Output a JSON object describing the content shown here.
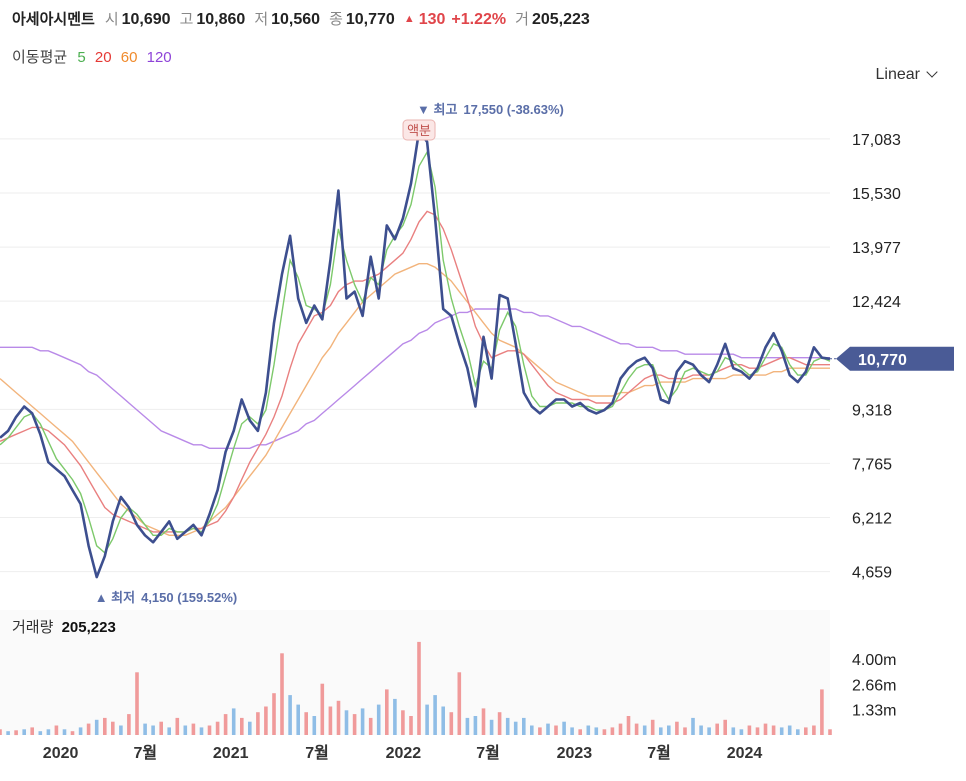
{
  "header": {
    "name": "아세아시멘트",
    "open_label": "시",
    "open": "10,690",
    "high_label": "고",
    "high": "10,860",
    "low_label": "저",
    "low": "10,560",
    "close_label": "종",
    "close": "10,770",
    "change": "130",
    "change_pct": "+1.22%",
    "volume_label": "거",
    "volume": "205,223"
  },
  "ma_legend": {
    "title": "이동평균",
    "periods": [
      {
        "label": "5",
        "color": "#4caf50"
      },
      {
        "label": "20",
        "color": "#e53935"
      },
      {
        "label": "60",
        "color": "#f08a2b"
      },
      {
        "label": "120",
        "color": "#8e44d8"
      }
    ]
  },
  "scale_selector": {
    "label": "Linear"
  },
  "volume_panel": {
    "title": "거래량",
    "value": "205,223"
  },
  "colors": {
    "price_line": "#3d4f8f",
    "ma5": "#7dc96b",
    "ma20": "#e98080",
    "ma60": "#f2b47c",
    "ma120": "#b98ae8",
    "current_tag": "#4a5b96",
    "volume_up": "#f09a9a",
    "volume_down": "#8fbde6"
  },
  "chart_data": {
    "type": "line",
    "y_ticks": [
      "17,083",
      "15,530",
      "13,977",
      "12,424",
      "9,318",
      "7,765",
      "6,212",
      "4,659"
    ],
    "y_tick_values": [
      17083,
      15530,
      13977,
      12424,
      9318,
      7765,
      6212,
      4659
    ],
    "ylim": [
      3700,
      18200
    ],
    "x_ticks": [
      "2020",
      "7월",
      "2021",
      "7월",
      "2022",
      "7월",
      "2023",
      "7월",
      "2024"
    ],
    "current_price_tag": "10,770",
    "high_annotation": {
      "label": "최고",
      "value": "17,550 (-38.63%)",
      "price": 17550
    },
    "low_annotation": {
      "label": "최저",
      "value": "4,150 (159.52%)",
      "price": 4150
    },
    "event_marker": "액분",
    "volume_ticks": [
      "4.00m",
      "2.66m",
      "1.33m"
    ],
    "volume_tick_values": [
      4000000,
      2660000,
      1330000
    ],
    "series": [
      {
        "name": "Price",
        "values": [
          8500,
          8700,
          9100,
          9400,
          9200,
          8600,
          7800,
          7600,
          7400,
          7000,
          6600,
          5400,
          4500,
          5100,
          6100,
          6800,
          6500,
          6000,
          5700,
          5500,
          5800,
          6100,
          5600,
          5800,
          6000,
          5700,
          6300,
          7000,
          8100,
          8700,
          9600,
          9000,
          8700,
          9800,
          11800,
          13200,
          14300,
          12500,
          11800,
          12300,
          11900,
          13600,
          15600,
          12500,
          12700,
          12000,
          13700,
          12500,
          14600,
          14200,
          14800,
          15800,
          17300,
          17000,
          14800,
          12200,
          12000,
          11200,
          10500,
          9400,
          11400,
          10200,
          12600,
          12500,
          11200,
          9800,
          9400,
          9200,
          9400,
          9600,
          9600,
          9400,
          9500,
          9300,
          9200,
          9300,
          9500,
          10200,
          10500,
          10700,
          10800,
          10500,
          9600,
          9500,
          10400,
          10700,
          10600,
          10300,
          10100,
          10600,
          11200,
          10500,
          10400,
          10200,
          10500,
          11100,
          11500,
          11000,
          10300,
          10100,
          10400,
          11100,
          10800,
          10770
        ]
      },
      {
        "name": "MA5",
        "values": [
          8300,
          8500,
          8800,
          9100,
          9200,
          8900,
          8400,
          7900,
          7600,
          7300,
          6900,
          6200,
          5400,
          5200,
          5600,
          6200,
          6500,
          6300,
          6000,
          5700,
          5700,
          5900,
          5800,
          5800,
          5900,
          5800,
          6100,
          6600,
          7400,
          8200,
          8900,
          9100,
          8900,
          9300,
          10600,
          12100,
          13600,
          13100,
          12300,
          12200,
          12000,
          12900,
          14500,
          13600,
          12900,
          12400,
          13100,
          12900,
          13900,
          14300,
          14600,
          15200,
          16300,
          16700,
          15700,
          13600,
          12500,
          11700,
          11000,
          10000,
          10700,
          10500,
          11600,
          12100,
          11700,
          10600,
          9700,
          9400,
          9400,
          9500,
          9500,
          9500,
          9400,
          9400,
          9300,
          9300,
          9400,
          9800,
          10200,
          10500,
          10600,
          10600,
          10000,
          9600,
          9900,
          10400,
          10500,
          10400,
          10300,
          10400,
          10800,
          10700,
          10500,
          10300,
          10400,
          10800,
          11200,
          11100,
          10600,
          10300,
          10300,
          10700,
          10800,
          10700
        ]
      },
      {
        "name": "MA20",
        "values": [
          8400,
          8500,
          8600,
          8700,
          8800,
          8800,
          8700,
          8500,
          8300,
          8000,
          7700,
          7300,
          6900,
          6500,
          6300,
          6200,
          6100,
          6000,
          5900,
          5800,
          5800,
          5800,
          5800,
          5800,
          5900,
          5900,
          6000,
          6100,
          6400,
          6800,
          7300,
          7800,
          8200,
          8600,
          9100,
          9700,
          10500,
          11200,
          11600,
          12000,
          12100,
          12300,
          12700,
          12900,
          13000,
          13000,
          13100,
          13200,
          13400,
          13600,
          13800,
          14200,
          14700,
          15000,
          14900,
          14500,
          13900,
          13200,
          12500,
          11700,
          11200,
          10800,
          10900,
          11000,
          11000,
          10900,
          10600,
          10300,
          10000,
          9800,
          9700,
          9600,
          9600,
          9600,
          9500,
          9500,
          9500,
          9600,
          9800,
          10000,
          10200,
          10300,
          10300,
          10200,
          10200,
          10200,
          10300,
          10300,
          10300,
          10400,
          10500,
          10600,
          10600,
          10500,
          10500,
          10600,
          10700,
          10800,
          10800,
          10700,
          10600,
          10600,
          10600,
          10600
        ]
      },
      {
        "name": "MA60",
        "values": [
          10200,
          10000,
          9800,
          9600,
          9400,
          9200,
          9000,
          8800,
          8600,
          8400,
          8100,
          7800,
          7500,
          7200,
          6900,
          6600,
          6400,
          6200,
          6000,
          5900,
          5800,
          5700,
          5700,
          5700,
          5800,
          5900,
          6100,
          6300,
          6500,
          6800,
          7100,
          7400,
          7700,
          8000,
          8400,
          8800,
          9200,
          9600,
          10000,
          10400,
          10800,
          11100,
          11500,
          11800,
          12100,
          12400,
          12600,
          12800,
          13000,
          13200,
          13300,
          13400,
          13500,
          13500,
          13400,
          13200,
          13000,
          12700,
          12400,
          12100,
          11800,
          11500,
          11300,
          11200,
          11100,
          10900,
          10700,
          10500,
          10300,
          10100,
          10000,
          9900,
          9800,
          9700,
          9700,
          9700,
          9700,
          9800,
          9800,
          9900,
          10000,
          10000,
          10100,
          10100,
          10100,
          10100,
          10200,
          10200,
          10200,
          10200,
          10200,
          10300,
          10300,
          10300,
          10300,
          10300,
          10400,
          10400,
          10500,
          10500,
          10500,
          10500,
          10500,
          10500
        ]
      },
      {
        "name": "MA120",
        "values": [
          11100,
          11100,
          11100,
          11100,
          11100,
          11000,
          11000,
          10900,
          10800,
          10700,
          10600,
          10400,
          10300,
          10100,
          9900,
          9700,
          9500,
          9300,
          9100,
          8900,
          8700,
          8600,
          8500,
          8400,
          8300,
          8300,
          8200,
          8200,
          8200,
          8200,
          8200,
          8200,
          8300,
          8300,
          8400,
          8500,
          8600,
          8700,
          8900,
          9000,
          9200,
          9400,
          9600,
          9800,
          10000,
          10200,
          10400,
          10600,
          10800,
          11000,
          11200,
          11300,
          11500,
          11600,
          11800,
          11900,
          12000,
          12100,
          12100,
          12200,
          12200,
          12200,
          12200,
          12200,
          12200,
          12100,
          12100,
          12000,
          12000,
          11900,
          11800,
          11700,
          11700,
          11600,
          11500,
          11400,
          11300,
          11200,
          11200,
          11100,
          11100,
          11100,
          11000,
          11000,
          11000,
          10900,
          10900,
          10900,
          10900,
          10900,
          10900,
          10900,
          10800,
          10800,
          10800,
          10800,
          10800,
          10800,
          10800,
          10800,
          10800,
          10800,
          10800,
          10800
        ]
      }
    ],
    "volume_values": [
      0.3,
      0.2,
      0.25,
      0.3,
      0.4,
      0.2,
      0.3,
      0.5,
      0.3,
      0.2,
      0.4,
      0.6,
      0.8,
      0.9,
      0.7,
      0.5,
      1.1,
      3.3,
      0.6,
      0.5,
      0.7,
      0.4,
      0.9,
      0.5,
      0.6,
      0.4,
      0.5,
      0.7,
      1.1,
      1.4,
      0.9,
      0.7,
      1.2,
      1.5,
      2.2,
      4.3,
      2.1,
      1.6,
      1.2,
      1.0,
      2.7,
      1.5,
      1.8,
      1.3,
      1.1,
      1.4,
      0.9,
      1.6,
      2.4,
      1.9,
      1.3,
      1.0,
      4.9,
      1.6,
      2.1,
      1.5,
      1.2,
      3.3,
      0.9,
      1.0,
      1.4,
      0.8,
      1.2,
      0.9,
      0.7,
      0.9,
      0.5,
      0.4,
      0.6,
      0.5,
      0.7,
      0.4,
      0.3,
      0.5,
      0.4,
      0.3,
      0.4,
      0.6,
      1.0,
      0.6,
      0.5,
      0.8,
      0.4,
      0.5,
      0.7,
      0.4,
      0.9,
      0.5,
      0.4,
      0.6,
      0.8,
      0.4,
      0.3,
      0.5,
      0.4,
      0.6,
      0.5,
      0.4,
      0.5,
      0.3,
      0.4,
      0.5,
      2.4,
      0.3
    ],
    "volume_up_flags": [
      1,
      0,
      1,
      0,
      1,
      0,
      0,
      1,
      0,
      1,
      0,
      1,
      0,
      1,
      1,
      0,
      1,
      1,
      0,
      0,
      1,
      0,
      1,
      0,
      1,
      0,
      1,
      1,
      1,
      0,
      1,
      0,
      1,
      1,
      1,
      1,
      0,
      0,
      1,
      0,
      1,
      1,
      1,
      0,
      1,
      0,
      1,
      0,
      1,
      0,
      1,
      1,
      1,
      0,
      0,
      0,
      1,
      1,
      0,
      0,
      1,
      0,
      1,
      0,
      0,
      0,
      0,
      1,
      0,
      1,
      0,
      0,
      1,
      0,
      0,
      1,
      1,
      1,
      1,
      1,
      0,
      1,
      0,
      0,
      1,
      1,
      0,
      0,
      0,
      1,
      1,
      0,
      0,
      1,
      1,
      1,
      1,
      0,
      0,
      0,
      1,
      1,
      1,
      1
    ]
  }
}
